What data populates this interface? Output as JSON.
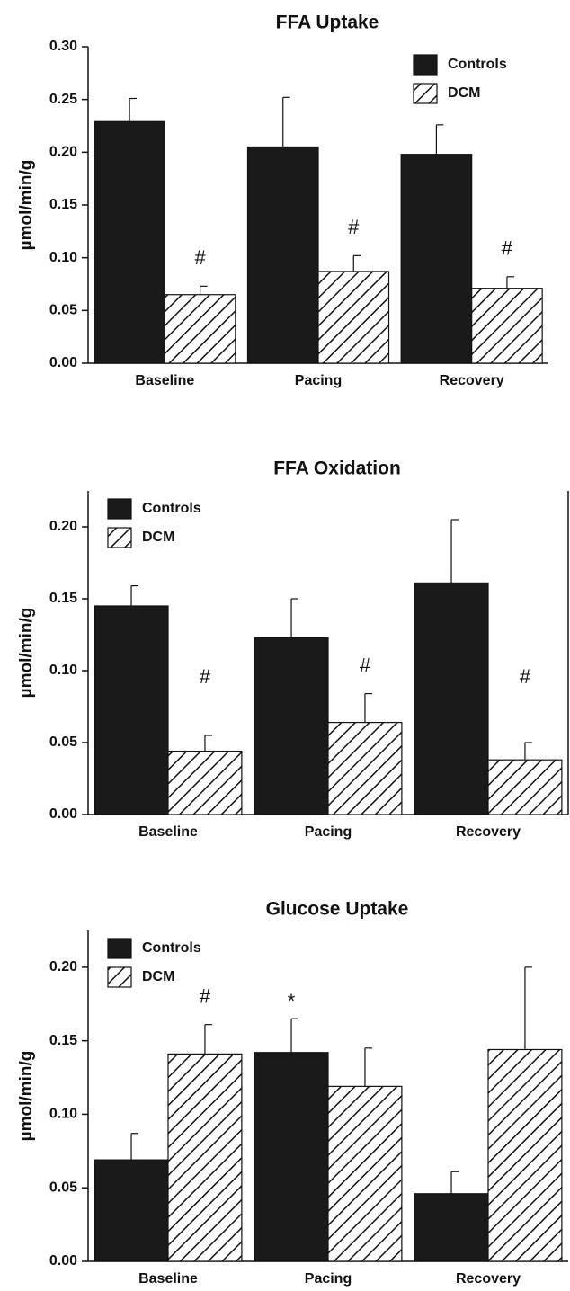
{
  "chart_data": [
    {
      "type": "bar",
      "title": "FFA Uptake",
      "ylabel": "µmol/min/g",
      "categories": [
        "Baseline",
        "Pacing",
        "Recovery"
      ],
      "series": [
        {
          "name": "Controls",
          "color": "#1a1a1a",
          "values": [
            0.229,
            0.205,
            0.198
          ],
          "errors": [
            0.022,
            0.047,
            0.028
          ],
          "annotations": [
            null,
            null,
            null
          ]
        },
        {
          "name": "DCM",
          "color": "#ffffff",
          "pattern": "hatch",
          "values": [
            0.065,
            0.087,
            0.071
          ],
          "errors": [
            0.008,
            0.015,
            0.011
          ],
          "annotations": [
            "#",
            "#",
            "#"
          ]
        }
      ],
      "ylim": [
        0,
        0.3
      ],
      "yticks": [
        {
          "value": 0,
          "label": "0.00"
        },
        {
          "value": 0.05,
          "label": "0.05"
        },
        {
          "value": 0.1,
          "label": "0.10"
        },
        {
          "value": 0.15,
          "label": "0.15"
        },
        {
          "value": 0.2,
          "label": "0.20"
        },
        {
          "value": 0.25,
          "label": "0.25"
        },
        {
          "value": 0.3,
          "label": "0.30"
        }
      ],
      "legend": "upper right"
    },
    {
      "type": "bar",
      "title": "FFA Oxidation",
      "ylabel": "µmol/min/g",
      "categories": [
        "Baseline",
        "Pacing",
        "Recovery"
      ],
      "series": [
        {
          "name": "Controls",
          "color": "#1a1a1a",
          "values": [
            0.145,
            0.123,
            0.161
          ],
          "errors": [
            0.014,
            0.027,
            0.044
          ],
          "annotations": [
            null,
            null,
            null
          ]
        },
        {
          "name": "DCM",
          "color": "#ffffff",
          "pattern": "hatch",
          "values": [
            0.044,
            0.064,
            0.038
          ],
          "errors": [
            0.011,
            0.02,
            0.012
          ],
          "annotations": [
            "#",
            "#",
            "#"
          ]
        }
      ],
      "ylim": [
        0,
        0.225
      ],
      "yticks": [
        {
          "value": 0,
          "label": "0.00"
        },
        {
          "value": 0.05,
          "label": "0.05"
        },
        {
          "value": 0.1,
          "label": "0.10"
        },
        {
          "value": 0.15,
          "label": "0.15"
        },
        {
          "value": 0.2,
          "label": "0.20"
        }
      ],
      "legend": "upper left"
    },
    {
      "type": "bar",
      "title": "Glucose Uptake",
      "ylabel": "µmol/min/g",
      "categories": [
        "Baseline",
        "Pacing",
        "Recovery"
      ],
      "series": [
        {
          "name": "Controls",
          "color": "#1a1a1a",
          "values": [
            0.069,
            0.142,
            0.046
          ],
          "errors": [
            0.018,
            0.023,
            0.015
          ],
          "annotations": [
            null,
            "*",
            null
          ]
        },
        {
          "name": "DCM",
          "color": "#ffffff",
          "pattern": "hatch",
          "values": [
            0.141,
            0.119,
            0.144
          ],
          "errors": [
            0.02,
            0.026,
            0.056
          ],
          "annotations": [
            "#",
            null,
            null
          ]
        }
      ],
      "ylim": [
        0,
        0.225
      ],
      "yticks": [
        {
          "value": 0,
          "label": "0.00"
        },
        {
          "value": 0.05,
          "label": "0.05"
        },
        {
          "value": 0.1,
          "label": "0.10"
        },
        {
          "value": 0.15,
          "label": "0.15"
        },
        {
          "value": 0.2,
          "label": "0.20"
        }
      ],
      "legend": "upper left"
    }
  ]
}
